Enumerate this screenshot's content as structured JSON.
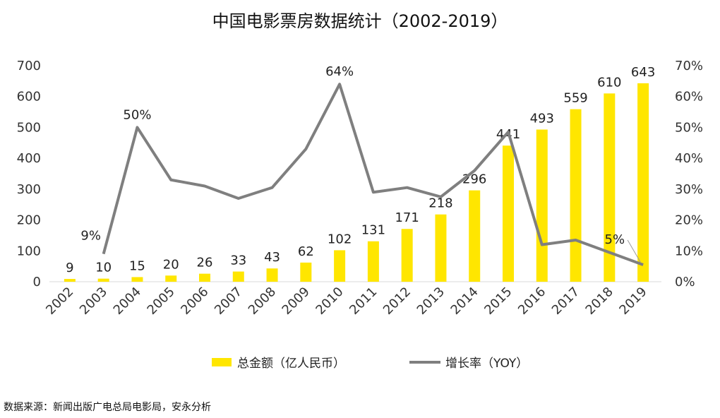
{
  "chart_data": {
    "type": "bar",
    "title": "中国电影票房数据统计（2002-2019）",
    "categories": [
      "2002",
      "2003",
      "2004",
      "2005",
      "2006",
      "2007",
      "2008",
      "2009",
      "2010",
      "2011",
      "2012",
      "2013",
      "2014",
      "2015",
      "2016",
      "2017",
      "2018",
      "2019"
    ],
    "series": [
      {
        "name": "总金额（亿人民币）",
        "type": "bar",
        "axis": "left",
        "color": "#FFE600",
        "values": [
          9,
          10,
          15,
          20,
          26,
          33,
          43,
          62,
          102,
          131,
          171,
          218,
          296,
          441,
          493,
          559,
          610,
          643
        ],
        "labels": [
          "9",
          "10",
          "15",
          "20",
          "26",
          "33",
          "43",
          "62",
          "102",
          "131",
          "171",
          "218",
          "296",
          "441",
          "493",
          "559",
          "610",
          "643"
        ]
      },
      {
        "name": "增长率（YOY）",
        "type": "line",
        "axis": "right",
        "color": "#7F7F7F",
        "values": [
          null,
          9,
          50,
          33,
          31,
          27,
          30.5,
          43,
          64,
          29,
          30.5,
          27.5,
          36,
          48.5,
          12,
          13.5,
          9.5,
          5.5
        ],
        "labels": [
          {
            "year": "2003",
            "text": "9%"
          },
          {
            "year": "2004",
            "text": "50%"
          },
          {
            "year": "2010",
            "text": "64%"
          },
          {
            "year": "2019",
            "text": "5%"
          }
        ]
      }
    ],
    "y_left": {
      "min": 0,
      "max": 700,
      "ticks": [
        "0",
        "100",
        "200",
        "300",
        "400",
        "500",
        "600",
        "700"
      ]
    },
    "y_right": {
      "min": 0,
      "max": 70,
      "ticks": [
        "0%",
        "10%",
        "20%",
        "30%",
        "40%",
        "50%",
        "60%",
        "70%"
      ]
    },
    "grid": false,
    "legend_position": "bottom"
  },
  "source": "数据来源：新闻出版广电总局电影局，安永分析"
}
